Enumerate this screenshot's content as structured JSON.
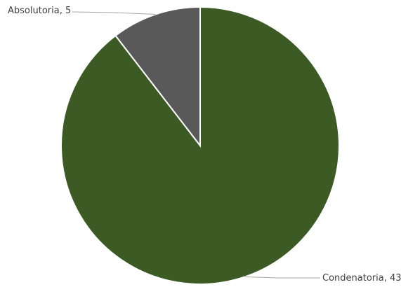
{
  "chart_data": {
    "type": "pie",
    "start_angle": "12 o'clock, clockwise",
    "slices": [
      {
        "label": "Condenatoria",
        "value": 43,
        "color": "#3b5a24"
      },
      {
        "label": "Absolutoria",
        "value": 5,
        "color": "#595959"
      }
    ],
    "data_labels": [
      {
        "text": "Condenatoria, 43"
      },
      {
        "text": "Absolutoria, 5"
      }
    ],
    "border_color": "#ffffff",
    "leader_line_color": "#a6a6a6"
  }
}
